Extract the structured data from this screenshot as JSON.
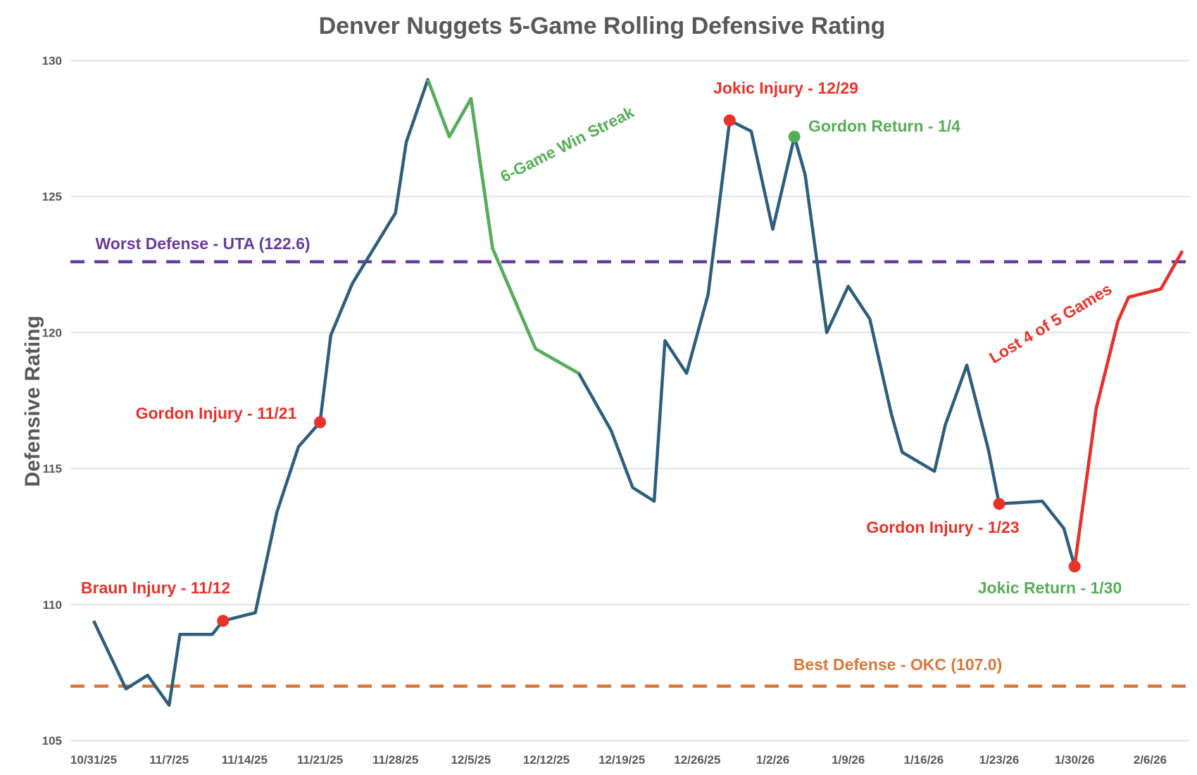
{
  "chart_data": {
    "type": "line",
    "title": "Denver Nuggets 5-Game Rolling Defensive Rating",
    "xlabel": "",
    "ylabel": "Defensive Rating",
    "ylim": [
      105,
      130
    ],
    "yticks": [
      "105",
      "110",
      "115",
      "120",
      "125",
      "130"
    ],
    "xticks": [
      "10/31/25",
      "11/7/25",
      "11/14/25",
      "11/21/25",
      "11/28/25",
      "12/5/25",
      "12/12/25",
      "12/19/25",
      "12/26/25",
      "1/2/26",
      "1/9/26",
      "1/16/26",
      "1/23/26",
      "1/30/26",
      "2/6/26"
    ],
    "grid": true,
    "x_days_since_10_31_25": [
      0,
      3,
      5,
      7,
      8,
      11,
      12,
      15,
      17,
      19,
      21,
      22,
      24,
      28,
      29,
      31,
      33,
      35,
      37,
      41,
      45,
      48,
      50,
      52,
      53,
      55,
      57,
      59,
      61,
      63,
      65,
      66,
      68,
      70,
      72,
      74,
      75,
      78,
      79,
      81,
      83,
      84,
      88,
      90,
      91,
      93,
      95,
      96,
      99,
      101
    ],
    "values": [
      109.4,
      106.9,
      107.4,
      106.3,
      108.9,
      108.9,
      109.4,
      109.7,
      113.4,
      115.8,
      116.7,
      119.9,
      121.8,
      124.4,
      127.0,
      129.3,
      127.2,
      128.6,
      123.1,
      119.4,
      118.5,
      116.4,
      114.3,
      113.8,
      119.7,
      118.5,
      121.4,
      127.8,
      127.4,
      123.8,
      127.2,
      125.8,
      120.0,
      121.7,
      120.5,
      117.0,
      115.6,
      114.9,
      116.6,
      118.8,
      115.7,
      113.7,
      113.8,
      112.8,
      111.4,
      117.2,
      120.4,
      121.3,
      121.6,
      123.0
    ],
    "highlight_segments": [
      {
        "label": "6-Game Win Streak",
        "from_day": 31,
        "to_day": 45,
        "color": "#55AE57"
      },
      {
        "label": "Lost 4 of 5 Games",
        "from_day": 91,
        "to_day": 101,
        "color": "#E8322A"
      }
    ],
    "reference_lines": [
      {
        "label": "Worst Defense - UTA (122.6)",
        "value": 122.6,
        "color": "#6A3A9C"
      },
      {
        "label": "Best Defense - OKC (107.0)",
        "value": 107.0,
        "color": "#D9773A"
      }
    ],
    "markers": [
      {
        "label": "Braun Injury - 11/12",
        "day": 12,
        "color": "#E8322A"
      },
      {
        "label": "Gordon Injury - 11/21",
        "day": 21,
        "color": "#E8322A"
      },
      {
        "label": "Jokic Injury - 12/29",
        "day": 59,
        "color": "#E8322A"
      },
      {
        "label": "Gordon Return - 1/4",
        "day": 65,
        "color": "#55AE57"
      },
      {
        "label": "Gordon Injury - 1/23",
        "day": 84,
        "color": "#E8322A"
      },
      {
        "label": "Jokic Return - 1/30",
        "day": 91,
        "color": "#E8322A",
        "text_color": "#55AE57"
      }
    ],
    "series_color": "#2E5E7E"
  }
}
